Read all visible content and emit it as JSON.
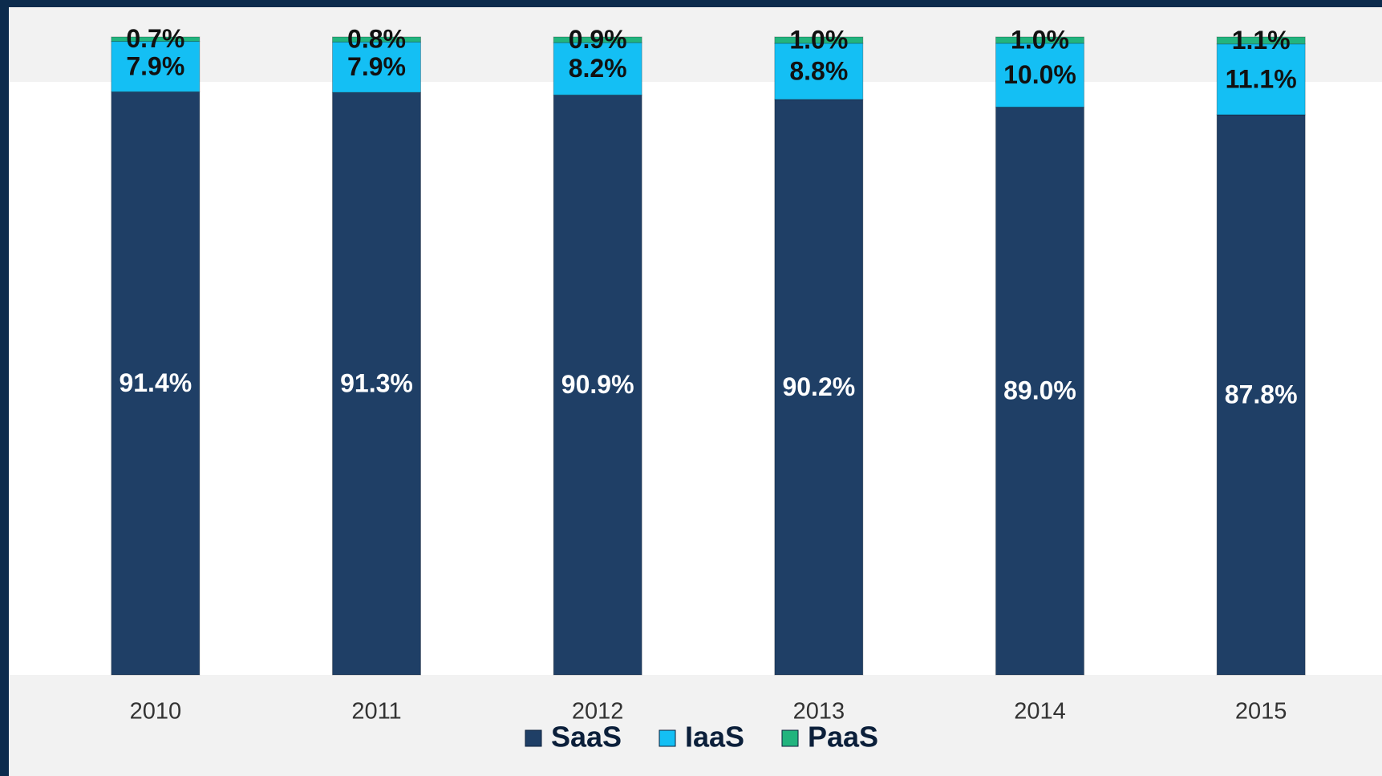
{
  "chart_data": {
    "type": "stacked_bar",
    "categories": [
      "2010",
      "2011",
      "2012",
      "2013",
      "2014",
      "2015"
    ],
    "series": [
      {
        "name": "SaaS",
        "color": "#1f3f66",
        "values": [
          91.4,
          91.3,
          90.9,
          90.2,
          89.0,
          87.8
        ],
        "value_labels": [
          "91.4%",
          "91.3%",
          "90.9%",
          "90.2%",
          "89.0%",
          "87.8%"
        ]
      },
      {
        "name": "IaaS",
        "color": "#14bff4",
        "values": [
          7.9,
          7.9,
          8.2,
          8.8,
          10.0,
          11.1
        ],
        "value_labels": [
          "7.9%",
          "7.9%",
          "8.2%",
          "8.8%",
          "10.0%",
          "11.1%"
        ]
      },
      {
        "name": "PaaS",
        "color": "#22b47e",
        "values": [
          0.7,
          0.8,
          0.9,
          1.0,
          1.0,
          1.1
        ],
        "value_labels": [
          "0.7%",
          "0.8%",
          "0.9%",
          "1.0%",
          "1.0%",
          "1.1%"
        ]
      }
    ],
    "ylim": [
      0,
      100
    ]
  }
}
